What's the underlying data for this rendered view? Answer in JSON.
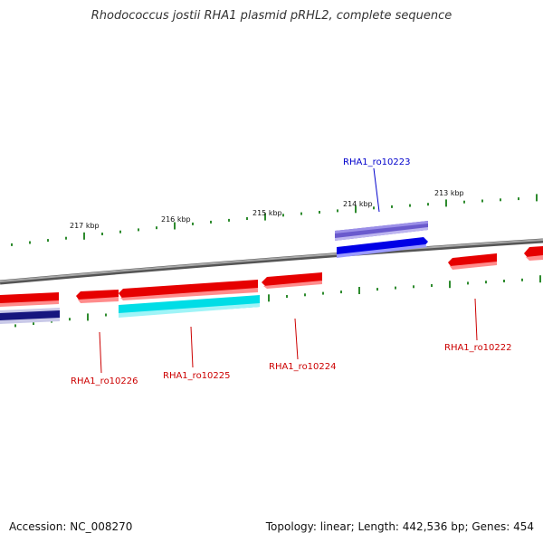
{
  "title": "Rhodococcus jostii RHA1 plasmid pRHL2, complete sequence",
  "footer": {
    "accession": "Accession: NC_008270",
    "stats": "Topology: linear; Length: 442,536 bp; Genes: 454"
  },
  "colors": {
    "backbone": "#8a8a8a",
    "tick": "#2e8b2e",
    "forward_gene": "#e60000",
    "rna_purple": "#6a5acd",
    "blue_gene": "#0000e0",
    "cyan_feature": "#00d8e0",
    "navy_feature": "#1a1a8a",
    "label_red": "#cc0000",
    "label_blue": "#0000cc"
  },
  "kbp_labels": [
    "217 kbp",
    "216 kbp",
    "215 kbp",
    "214 kbp",
    "213 kbp"
  ],
  "gene_labels": [
    {
      "text": "RHA1_ro10223",
      "color": "blue"
    },
    {
      "text": "RHA1_ro10226",
      "color": "red"
    },
    {
      "text": "RHA1_ro10225",
      "color": "red"
    },
    {
      "text": "RHA1_ro10224",
      "color": "red"
    },
    {
      "text": "RHA1_ro10222",
      "color": "red"
    }
  ]
}
